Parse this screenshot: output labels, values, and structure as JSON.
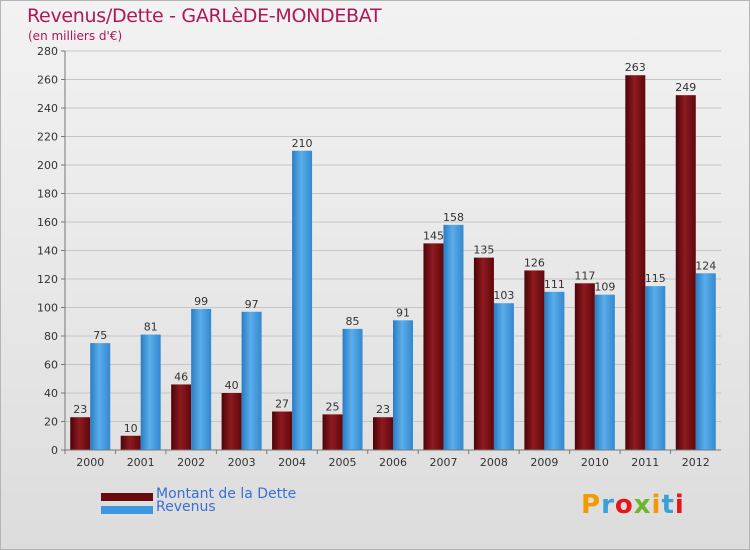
{
  "chart_data": {
    "type": "bar",
    "title": "Revenus/Dette - GARLèDE-MONDEBAT",
    "subtitle": "(en milliers d'€)",
    "categories": [
      "2000",
      "2001",
      "2002",
      "2003",
      "2004",
      "2005",
      "2006",
      "2007",
      "2008",
      "2009",
      "2010",
      "2011",
      "2012"
    ],
    "series": [
      {
        "name": "Montant de la Dette",
        "color": "#7a0c10",
        "values": [
          23,
          10,
          46,
          40,
          27,
          25,
          23,
          145,
          135,
          126,
          117,
          263,
          249
        ]
      },
      {
        "name": "Revenus",
        "color": "#3d98e0",
        "values": [
          75,
          81,
          99,
          97,
          210,
          85,
          91,
          158,
          103,
          111,
          109,
          115,
          124
        ]
      }
    ],
    "ylim": [
      0,
      280
    ],
    "yticks": [
      0,
      20,
      40,
      60,
      80,
      100,
      120,
      140,
      160,
      180,
      200,
      220,
      240,
      260,
      280
    ],
    "grid": true,
    "legend_position": "bottom-left"
  },
  "logo": {
    "letters": [
      "P",
      "r",
      "o",
      "x",
      "i",
      "t",
      "i"
    ],
    "colors": [
      "#f29a00",
      "#3aa0d8",
      "#e8141b",
      "#6cb52d",
      "#f29a00",
      "#3aa0d8",
      "#e8141b"
    ]
  }
}
